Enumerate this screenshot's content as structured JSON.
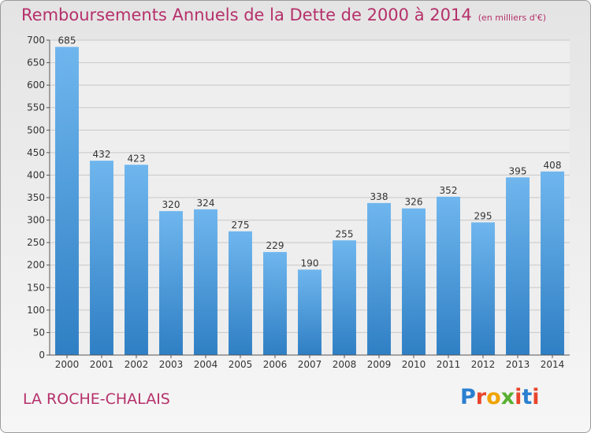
{
  "title": "Remboursements Annuels de la Dette de 2000 à 2014",
  "unit": "(en milliers d'€)",
  "city": "LA ROCHE-CHALAIS",
  "logo": {
    "letters": [
      "P",
      "r",
      "o",
      "x",
      "i",
      "t",
      "i"
    ],
    "colors": [
      "#2a7fd0",
      "#e8452c",
      "#f0a300",
      "#58b030",
      "#e8452c",
      "#2a7fd0",
      "#e8452c"
    ]
  },
  "colors": {
    "title": "#b5306a",
    "bar_top": "#6fb6ee",
    "bar_bottom": "#2f7fc4",
    "grid": "#c8c8c8"
  },
  "chart_data": {
    "type": "bar",
    "title": "Remboursements Annuels de la Dette de 2000 à 2014",
    "categories": [
      "2000",
      "2001",
      "2002",
      "2003",
      "2004",
      "2005",
      "2006",
      "2007",
      "2008",
      "2009",
      "2010",
      "2011",
      "2012",
      "2013",
      "2014"
    ],
    "values": [
      685,
      432,
      423,
      320,
      324,
      275,
      229,
      190,
      255,
      338,
      326,
      352,
      295,
      395,
      408
    ],
    "ylim": [
      0,
      700
    ],
    "yticks": [
      0,
      50,
      100,
      150,
      200,
      250,
      300,
      350,
      400,
      450,
      500,
      550,
      600,
      650,
      700
    ],
    "grid": true,
    "data_labels": true
  }
}
